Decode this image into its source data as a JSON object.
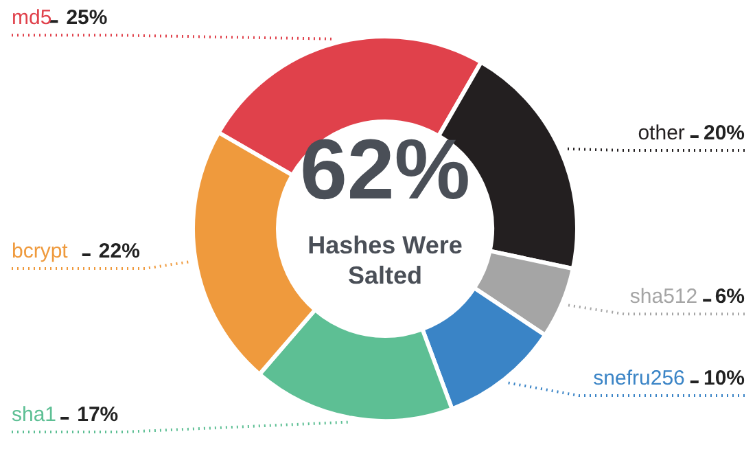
{
  "chart_data": {
    "type": "donut",
    "categories": [
      "md5",
      "other",
      "sha512",
      "snefru256",
      "sha1",
      "bcrypt"
    ],
    "values": [
      25,
      20,
      6,
      10,
      17,
      22
    ],
    "value_labels": [
      "25%",
      "20%",
      "6%",
      "10%",
      "17%",
      "22%"
    ],
    "colors": [
      "#e0414b",
      "#231f20",
      "#a5a5a5",
      "#3a84c6",
      "#5dbf94",
      "#ef9a3d"
    ],
    "annotations": [
      "62%",
      "Hashes Were Salted"
    ]
  }
}
